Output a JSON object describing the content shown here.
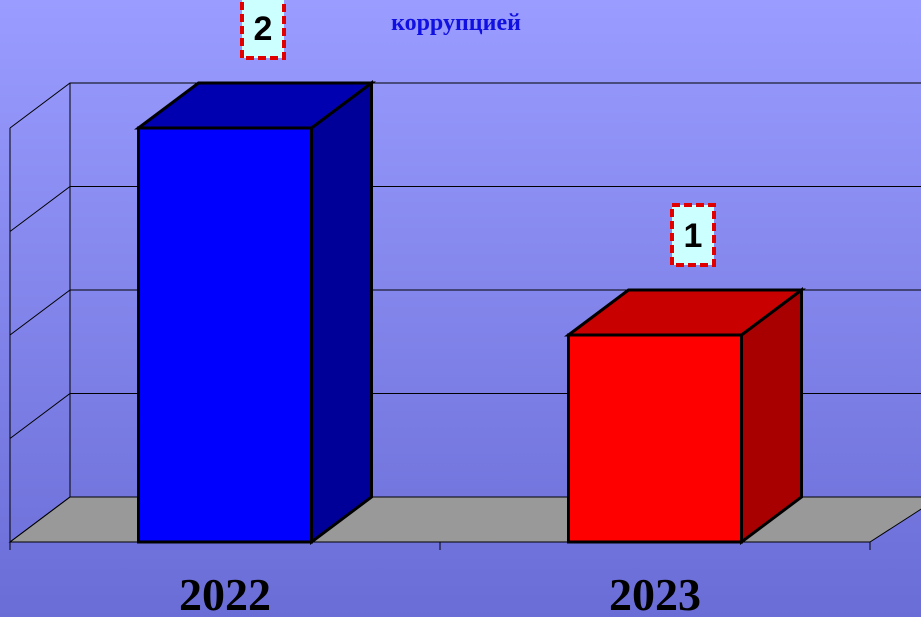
{
  "chart_data": {
    "type": "bar3d",
    "title": "коррупцией",
    "categories": [
      "2022",
      "2023"
    ],
    "values": [
      2,
      1
    ],
    "colors": [
      "#0000ff",
      "#ff0000"
    ],
    "ylim": [
      0,
      2
    ],
    "yticks": [
      0,
      0.5,
      1,
      1.5,
      2
    ],
    "grid": true
  }
}
